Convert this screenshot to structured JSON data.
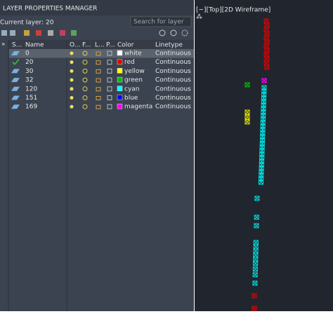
{
  "panel": {
    "title": "LAYER PROPERTIES MANAGER",
    "current_layer": "Current layer: 20",
    "search_placeholder": "Search for layer",
    "columns": [
      "S...",
      "Name",
      "O...",
      "F...",
      "L...",
      "P...",
      "Color",
      "Linetype"
    ],
    "rows": [
      {
        "name": "0",
        "color": "#ffffff",
        "color_name": "white",
        "linetype": "Continuous",
        "selected": true,
        "current": false
      },
      {
        "name": "20",
        "color": "#e00000",
        "color_name": "red",
        "linetype": "Continuous",
        "selected": false,
        "current": true
      },
      {
        "name": "30",
        "color": "#ffff00",
        "color_name": "yellow",
        "linetype": "Continuous",
        "selected": false,
        "current": false
      },
      {
        "name": "32",
        "color": "#00c000",
        "color_name": "green",
        "linetype": "Continuous",
        "selected": false,
        "current": false
      },
      {
        "name": "120",
        "color": "#00ffff",
        "color_name": "cyan",
        "linetype": "Continuous",
        "selected": false,
        "current": false
      },
      {
        "name": "151",
        "color": "#0000ff",
        "color_name": "blue",
        "linetype": "Continuous",
        "selected": false,
        "current": false
      },
      {
        "name": "169",
        "color": "#ff00ff",
        "color_name": "magenta",
        "linetype": "Continuous",
        "selected": false,
        "current": false
      }
    ]
  },
  "viewport": {
    "label": "[−][Top][2D Wireframe]"
  }
}
